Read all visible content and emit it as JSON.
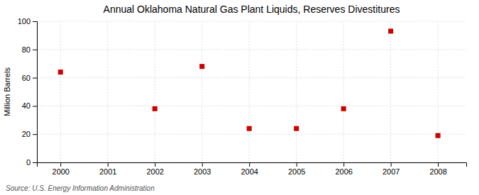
{
  "chart_data": {
    "type": "scatter",
    "title": "Annual Oklahoma Natural Gas Plant Liquids, Reserves Divestitures",
    "y_label": "Million Barrels",
    "annotations": [
      "Source: U.S. Energy Information Administration"
    ],
    "x": [
      2000,
      2002,
      2003,
      2004,
      2005,
      2006,
      2007,
      2008
    ],
    "values": [
      64,
      38,
      68,
      24,
      24,
      38,
      93,
      19
    ],
    "color": "#cc0000",
    "marker": "square",
    "xlim": [
      1999.5,
      2008.6
    ],
    "ylim": [
      0,
      100
    ],
    "xticks": [
      2000,
      2001,
      2002,
      2003,
      2004,
      2005,
      2006,
      2007,
      2008
    ],
    "yticks": [
      0,
      20,
      40,
      60,
      80,
      100
    ],
    "grid": true
  }
}
